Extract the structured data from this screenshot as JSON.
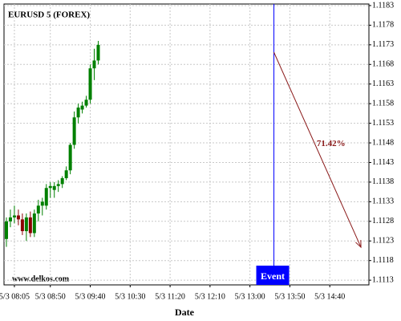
{
  "chart_data": {
    "type": "candlestick",
    "title": "EURUSD 5 (FOREX)",
    "watermark": "www.delkos.com",
    "x_label": "Date",
    "x": [
      "5/3 07:55",
      "5/3 08:00",
      "5/3 08:05",
      "5/3 08:10",
      "5/3 08:15",
      "5/3 08:20",
      "5/3 08:25",
      "5/3 08:30",
      "5/3 08:35",
      "5/3 08:40",
      "5/3 08:45",
      "5/3 08:50",
      "5/3 08:55",
      "5/3 09:00",
      "5/3 09:05",
      "5/3 09:10",
      "5/3 09:15",
      "5/3 09:20",
      "5/3 09:25",
      "5/3 09:30",
      "5/3 09:35",
      "5/3 09:40",
      "5/3 09:45",
      "5/3 09:50"
    ],
    "open": [
      1.11235,
      1.1128,
      1.1129,
      1.11295,
      1.11285,
      1.11255,
      1.1129,
      1.1125,
      1.113,
      1.1132,
      1.1132,
      1.11365,
      1.1136,
      1.1137,
      1.11375,
      1.1139,
      1.1141,
      1.11475,
      1.11545,
      1.11565,
      1.11575,
      1.1159,
      1.1167,
      1.1169
    ],
    "high": [
      1.1129,
      1.1131,
      1.1132,
      1.1131,
      1.113,
      1.113,
      1.11305,
      1.1131,
      1.11335,
      1.1134,
      1.11375,
      1.1138,
      1.1138,
      1.11385,
      1.11395,
      1.1142,
      1.1148,
      1.1156,
      1.1158,
      1.11585,
      1.116,
      1.1168,
      1.1172,
      1.1174
    ],
    "low": [
      1.11215,
      1.11265,
      1.11275,
      1.1127,
      1.11245,
      1.1123,
      1.1124,
      1.1124,
      1.1128,
      1.11295,
      1.1131,
      1.1134,
      1.1134,
      1.11355,
      1.11365,
      1.11385,
      1.114,
      1.11465,
      1.1153,
      1.11555,
      1.1157,
      1.1158,
      1.1164,
      1.1168
    ],
    "close": [
      1.1128,
      1.1129,
      1.11295,
      1.11285,
      1.11255,
      1.1129,
      1.1125,
      1.113,
      1.1132,
      1.1133,
      1.11365,
      1.1137,
      1.1137,
      1.11375,
      1.1139,
      1.1141,
      1.11475,
      1.11545,
      1.1157,
      1.11575,
      1.1159,
      1.1167,
      1.1169,
      1.1173
    ],
    "up_color": "#008000",
    "down_color": "#8b0000",
    "xlim": [
      "5/3 07:52",
      "5/3 15:29"
    ],
    "xticks": [
      "5/3 08:05",
      "5/3 08:50",
      "5/3 09:40",
      "5/3 10:30",
      "5/3 11:20",
      "5/3 12:10",
      "5/3 13:00",
      "5/3 13:50",
      "5/3 14:40"
    ],
    "ylim": [
      1.11118,
      1.11834
    ],
    "yticks": [
      1.1113,
      1.1118,
      1.1123,
      1.1128,
      1.1133,
      1.1138,
      1.1143,
      1.1148,
      1.1153,
      1.1158,
      1.1163,
      1.1168,
      1.1173,
      1.1178,
      1.1183
    ],
    "grid": true,
    "event": {
      "label": "Event",
      "x": "5/3 13:30",
      "color": "#0000ff"
    },
    "arrow": {
      "label": "71.42%",
      "x": [
        "5/3 13:30",
        "5/3 15:19"
      ],
      "y": [
        1.11711,
        1.11214
      ],
      "color": "#8b1a1a"
    }
  }
}
